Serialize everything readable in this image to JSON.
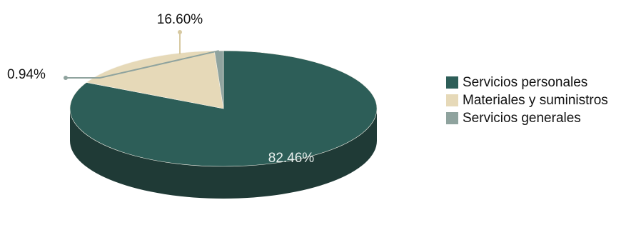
{
  "chart_data": {
    "type": "pie",
    "style": "3d",
    "title": "",
    "slices": [
      {
        "label": "Servicios personales",
        "value": 82.46,
        "display": "82.46%",
        "color": "#2d5e58",
        "side_color": "#1f3a36",
        "label_position": "inside"
      },
      {
        "label": "Materiales y suministros",
        "value": 16.6,
        "display": "16.60%",
        "color": "#e6d9b8",
        "side_color": "#bfb08c",
        "label_position": "outside"
      },
      {
        "label": "Servicios generales",
        "value": 0.94,
        "display": "0.94%",
        "color": "#8fa39e",
        "side_color": "#6b7f7a",
        "label_position": "outside"
      }
    ],
    "legend_position": "right"
  }
}
